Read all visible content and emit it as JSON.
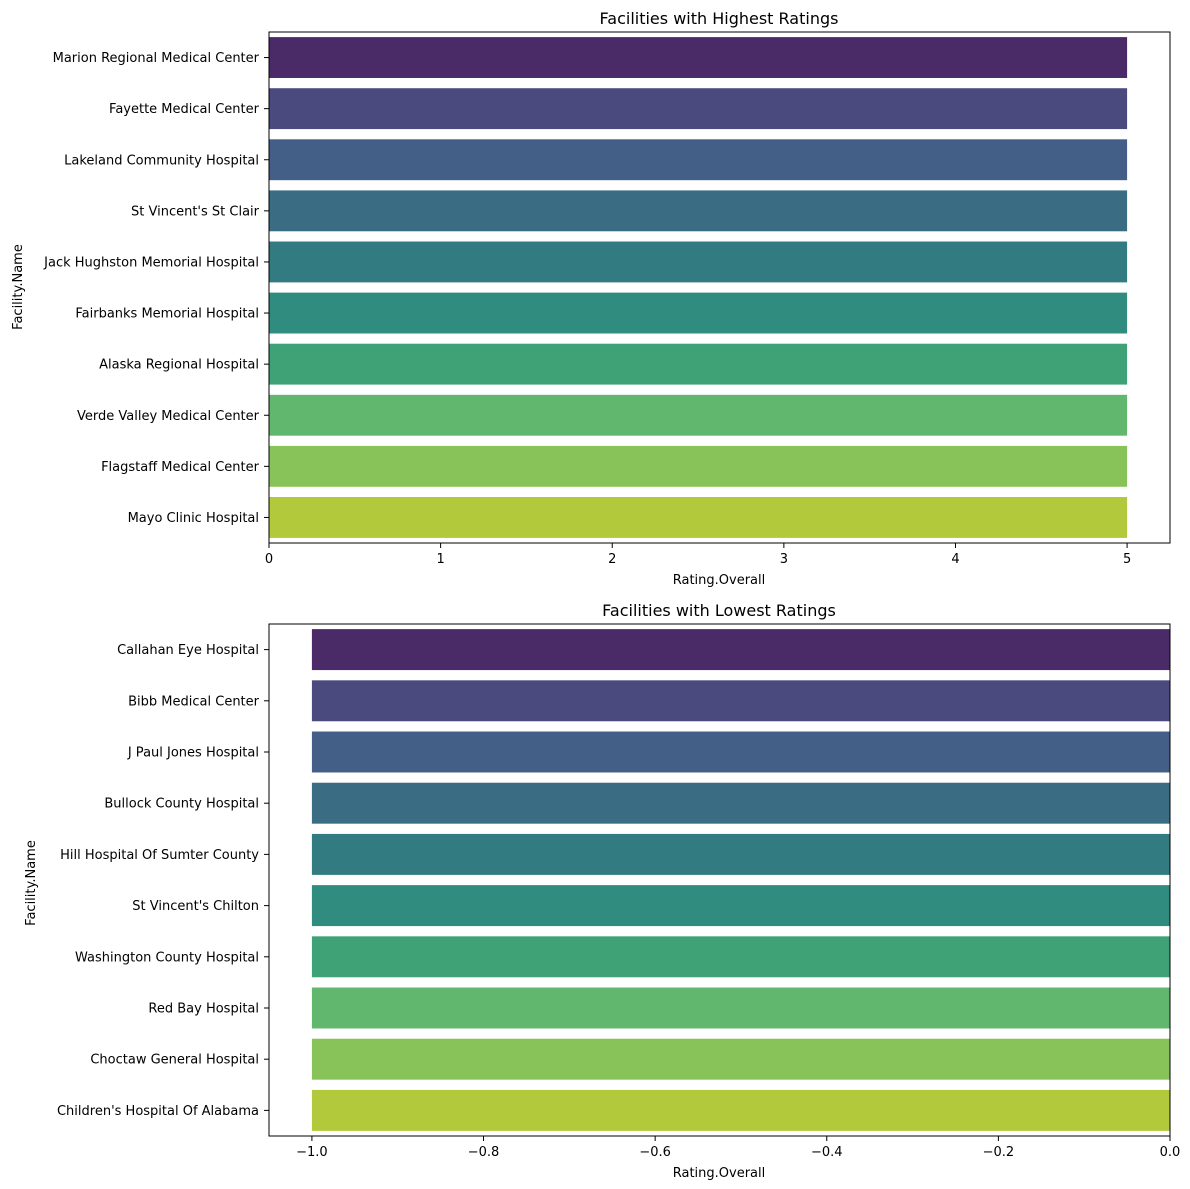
{
  "chart_data": [
    {
      "type": "bar",
      "orientation": "horizontal",
      "title": "Facilities with Highest Ratings",
      "xlabel": "Rating.Overall",
      "ylabel": "Facility.Name",
      "xlim": [
        0,
        5.25
      ],
      "xticks": [
        0,
        1,
        2,
        3,
        4,
        5
      ],
      "xtick_labels": [
        "0",
        "1",
        "2",
        "3",
        "4",
        "5"
      ],
      "grid": false,
      "categories": [
        "Marion Regional Medical Center",
        "Fayette Medical Center",
        "Lakeland Community Hospital",
        "St Vincent's St Clair",
        "Jack Hughston Memorial Hospital",
        "Fairbanks Memorial Hospital",
        "Alaska Regional Hospital",
        "Verde Valley Medical Center",
        "Flagstaff Medical Center",
        "Mayo Clinic Hospital"
      ],
      "values": [
        5,
        5,
        5,
        5,
        5,
        5,
        5,
        5,
        5,
        5
      ],
      "colors": [
        "#4b2a68",
        "#4b4a7f",
        "#435e87",
        "#3a6d84",
        "#327c81",
        "#2f8c7e",
        "#3fa276",
        "#62b76e",
        "#88c35a",
        "#b1c93b"
      ]
    },
    {
      "type": "bar",
      "orientation": "horizontal",
      "title": "Facilities with Lowest Ratings",
      "xlabel": "Rating.Overall",
      "ylabel": "Facility.Name",
      "xlim": [
        -1.05,
        0
      ],
      "xticks": [
        -1.0,
        -0.8,
        -0.6,
        -0.4,
        -0.2,
        0.0
      ],
      "xtick_labels": [
        "−1.0",
        "−0.8",
        "−0.6",
        "−0.4",
        "−0.2",
        "0.0"
      ],
      "grid": false,
      "categories": [
        "Callahan Eye Hospital",
        "Bibb Medical Center",
        "J Paul Jones Hospital",
        "Bullock County Hospital",
        "Hill Hospital Of Sumter County",
        "St Vincent's Chilton",
        "Washington County Hospital",
        "Red Bay Hospital",
        "Choctaw General Hospital",
        "Children's Hospital Of Alabama"
      ],
      "values": [
        -1,
        -1,
        -1,
        -1,
        -1,
        -1,
        -1,
        -1,
        -1,
        -1
      ],
      "colors": [
        "#4b2a68",
        "#4b4a7f",
        "#435e87",
        "#3a6d84",
        "#327c81",
        "#2f8c7e",
        "#3fa276",
        "#62b76e",
        "#88c35a",
        "#b1c93b"
      ]
    }
  ]
}
